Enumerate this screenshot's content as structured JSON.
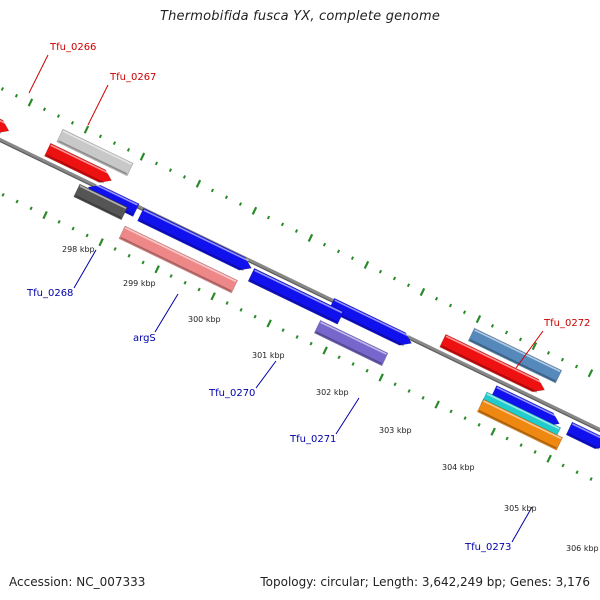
{
  "title": "Thermobifida fusca YX, complete genome",
  "footer": {
    "accession": "Accession: NC_007333",
    "topology": "Topology: circular; Length: 3,642,249 bp; Genes: 3,176"
  },
  "colors": {
    "forward_label": "#cc0000",
    "reverse_label": "#0000aa",
    "backbone": "#888888",
    "tick": "#2a8a2a"
  },
  "tick_labels": [
    "298 kbp",
    "299 kbp",
    "300 kbp",
    "301 kbp",
    "302 kbp",
    "303 kbp",
    "304 kbp",
    "305 kbp",
    "306 kbp"
  ],
  "genes": [
    {
      "label": "Tfu_0266",
      "strand": "forward",
      "color": "#ee1111"
    },
    {
      "label": "Tfu_0267",
      "strand": "forward",
      "color": "#c8c8c8"
    },
    {
      "label": "Tfu_0268",
      "strand": "reverse",
      "color": "#555555"
    },
    {
      "label": "argS",
      "strand": "reverse",
      "color": "#ee8888"
    },
    {
      "label": "Tfu_0270",
      "strand": "reverse",
      "color": "#1111ee"
    },
    {
      "label": "Tfu_0271",
      "strand": "reverse",
      "color": "#7766cc"
    },
    {
      "label": "Tfu_0272",
      "strand": "forward",
      "color": "#5588bb"
    },
    {
      "label": "Tfu_0273",
      "strand": "reverse",
      "color": "#ee8811"
    }
  ],
  "unlabeled_features": [
    {
      "strand": "forward",
      "color": "#ee1111"
    },
    {
      "strand": "forward",
      "color": "#ee1111"
    },
    {
      "strand": "reverse",
      "color": "#1111ee"
    },
    {
      "strand": "reverse",
      "color": "#1111ee"
    },
    {
      "strand": "reverse",
      "color": "#1111ee"
    },
    {
      "strand": "reverse",
      "color": "#1111ee"
    },
    {
      "strand": "reverse",
      "color": "#1111ee"
    },
    {
      "strand": "reverse",
      "color": "#22cccc"
    },
    {
      "strand": "reverse",
      "color": "#1111ee"
    }
  ]
}
